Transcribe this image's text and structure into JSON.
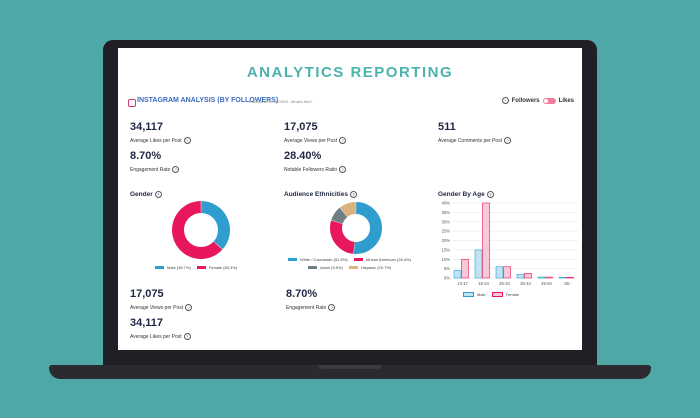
{
  "page_title": "ANALYTICS REPORTING",
  "header": {
    "title": "INSTAGRAM ANALYSIS (BY FOLLOWERS)",
    "note": "Data as of 07/06/2019. What's this?",
    "toggle_left": "Followers",
    "toggle_right": "Likes"
  },
  "stats": {
    "likes_val": "34,117",
    "likes_lbl": "Average Likes per Post",
    "views_val": "17,075",
    "views_lbl": "Average Views per Post",
    "comments_val": "511",
    "comments_lbl": "Average Comments per Post",
    "engagement_val": "8.70%",
    "engagement_lbl": "Engagement Rate",
    "notable_val": "28.40%",
    "notable_lbl": "Notable Followers Ratio"
  },
  "sections": {
    "gender": "Gender",
    "ethnicities": "Audience Ethnicities",
    "gender_age": "Gender By Age"
  },
  "legends": {
    "male": "Male (36.7%)",
    "female": "Female (63.3%)",
    "white": "White / Caucasian (51.5%)",
    "african": "African American (28.4%)",
    "asian": "Asian (9.5%)",
    "hispanic": "Hispanic (10.7%)",
    "age_male": "Male",
    "age_female": "Female"
  },
  "bottom": {
    "views_val": "17,075",
    "views_lbl": "Average Views per Post",
    "likes_val": "34,117",
    "likes_lbl": "Average Likes per Post",
    "engagement_val": "8.70%",
    "engagement_lbl": "Engagement Rate"
  },
  "colors": {
    "blue": "#2f9ecf",
    "pink": "#e8175d",
    "grey": "#6f7f86",
    "tan": "#d9b47e",
    "male_fill": "#bfe3f3",
    "female_fill": "#f7c9d8"
  },
  "chart_data": [
    {
      "type": "pie",
      "title": "Gender",
      "labels": [
        "Male",
        "Female"
      ],
      "values": [
        36.7,
        63.3
      ]
    },
    {
      "type": "pie",
      "title": "Audience Ethnicities",
      "labels": [
        "White / Caucasian",
        "African American",
        "Asian",
        "Hispanic"
      ],
      "values": [
        51.5,
        28.4,
        9.5,
        10.7
      ]
    },
    {
      "type": "bar",
      "title": "Gender By Age",
      "categories": [
        "13-17",
        "18-24",
        "25-34",
        "35-44",
        "45-64",
        "65-"
      ],
      "yticks": [
        "0%",
        "5%",
        "10%",
        "15%",
        "20%",
        "25%",
        "30%",
        "35%",
        "40%"
      ],
      "ylim": [
        0,
        40
      ],
      "series": [
        {
          "name": "Male",
          "values": [
            4,
            15,
            6,
            2,
            0.5,
            0
          ]
        },
        {
          "name": "Female",
          "values": [
            10,
            40,
            6,
            2.5,
            0.5,
            0
          ]
        }
      ],
      "grid": true,
      "legend": "bottom"
    }
  ]
}
